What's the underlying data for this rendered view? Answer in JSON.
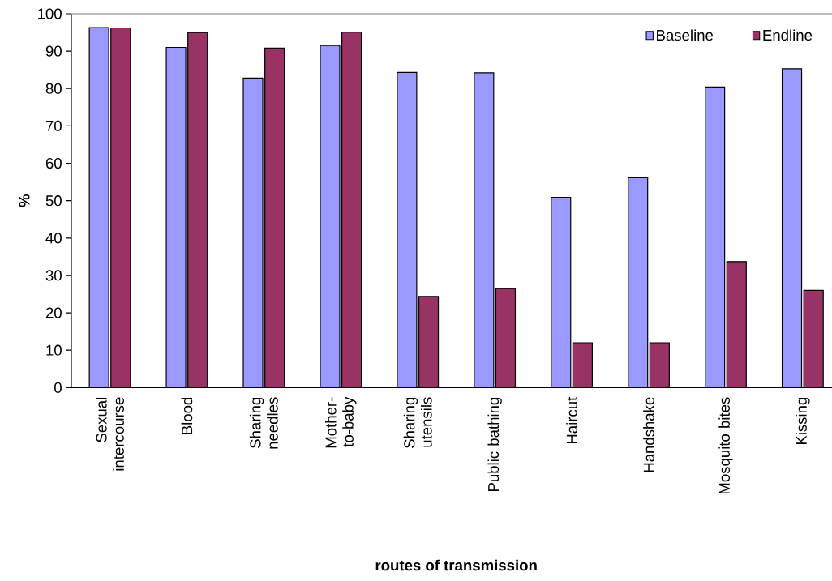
{
  "chart_data": {
    "type": "bar",
    "xlabel": "routes of transmission",
    "ylabel": "%",
    "categories": [
      "Sexual intercourse",
      "Blood",
      "Sharing needles",
      "Mother-to-baby",
      "Sharing utensils",
      "Public bathing",
      "Haircut",
      "Handshake",
      "Mosquito bites",
      "Kissing"
    ],
    "series": [
      {
        "name": "Baseline",
        "color": "#9999ff",
        "values": [
          96.3,
          91,
          82.8,
          91.5,
          84.3,
          84.2,
          50.9,
          56.1,
          80.4,
          85.3
        ]
      },
      {
        "name": "Endline",
        "color": "#993366",
        "values": [
          96.2,
          95,
          90.8,
          95.1,
          24.4,
          26.5,
          12,
          12,
          33.7,
          26
        ]
      }
    ],
    "ylim": [
      0,
      100
    ],
    "yticks": [
      0,
      10,
      20,
      30,
      40,
      50,
      60,
      70,
      80,
      90,
      100
    ],
    "legend": "top right"
  }
}
